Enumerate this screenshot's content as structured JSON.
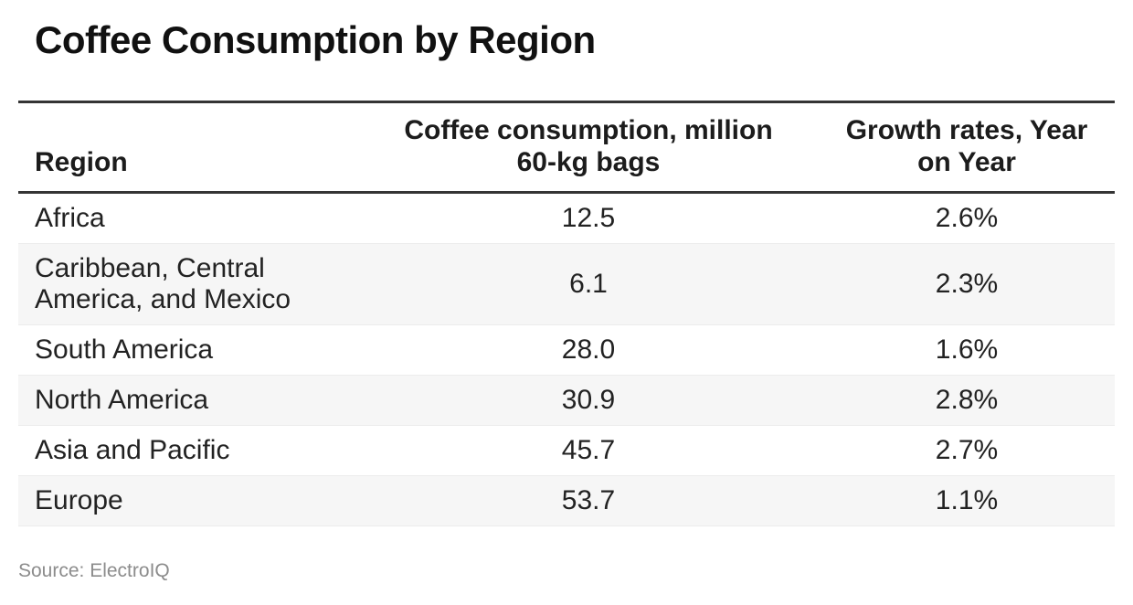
{
  "title": "Coffee Consumption by Region",
  "table": {
    "columns": {
      "region": "Region",
      "consumption": "Coffee consumption, million 60-kg bags",
      "growth": "Growth rates, Year on Year"
    },
    "rows": [
      {
        "region": "Africa",
        "consumption": "12.5",
        "growth": "2.6%"
      },
      {
        "region": "Caribbean, Central America, and Mexico",
        "consumption": "6.1",
        "growth": "2.3%"
      },
      {
        "region": "South America",
        "consumption": "28.0",
        "growth": "1.6%"
      },
      {
        "region": "North America",
        "consumption": "30.9",
        "growth": "2.8%"
      },
      {
        "region": "Asia and Pacific",
        "consumption": "45.7",
        "growth": "2.7%"
      },
      {
        "region": "Europe",
        "consumption": "53.7",
        "growth": "1.1%"
      }
    ]
  },
  "source": "Source: ElectroIQ",
  "colors": {
    "border_dark": "#343434",
    "row_alt_bg": "#f6f6f6",
    "row_divider": "#ececec",
    "text_primary": "#1c1c1c",
    "source_text": "#8c8c8c"
  },
  "chart_data": {
    "type": "table",
    "title": "Coffee Consumption by Region",
    "categories": [
      "Africa",
      "Caribbean, Central America, and Mexico",
      "South America",
      "North America",
      "Asia and Pacific",
      "Europe"
    ],
    "series": [
      {
        "name": "Coffee consumption, million 60-kg bags",
        "values": [
          12.5,
          6.1,
          28.0,
          30.9,
          45.7,
          53.7
        ]
      },
      {
        "name": "Growth rates, Year on Year (%)",
        "values": [
          2.6,
          2.3,
          1.6,
          2.8,
          2.7,
          1.1
        ]
      }
    ],
    "source": "ElectroIQ",
    "layout": {
      "striped_rows": true,
      "header_rule": "thick",
      "value_alignment": "center"
    }
  }
}
